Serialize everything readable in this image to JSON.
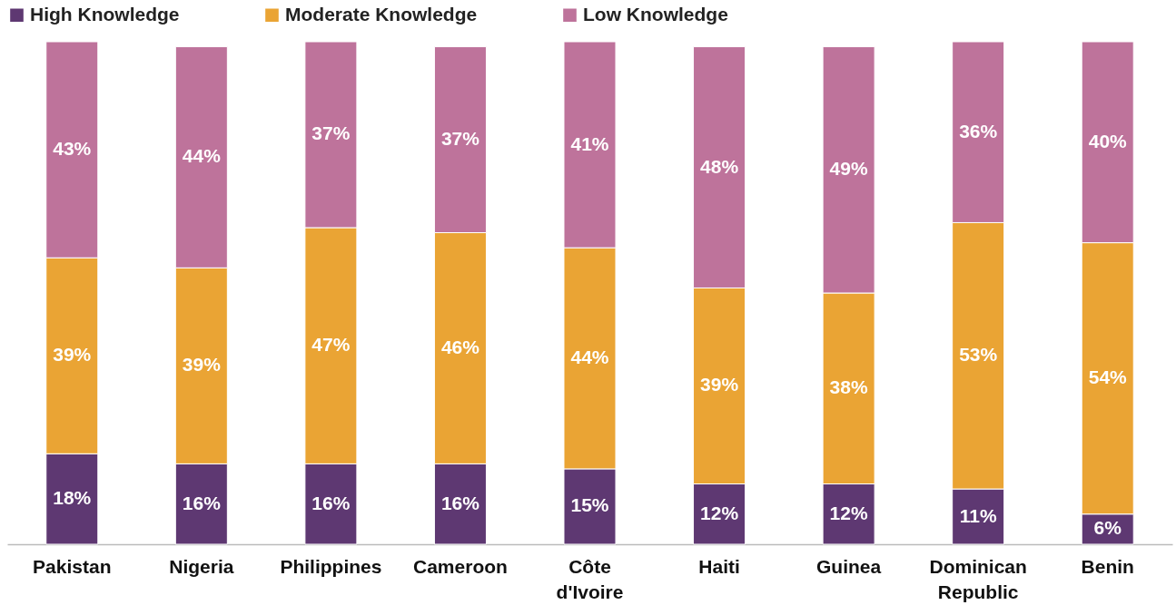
{
  "chart_data": {
    "type": "bar",
    "stacked": true,
    "legend": "top",
    "categories": [
      "Pakistan",
      "Nigeria",
      "Philippines",
      "Cameroon",
      "Côte d'Ivoire",
      "Haiti",
      "Guinea",
      "Dominican Republic",
      "Benin"
    ],
    "series": [
      {
        "name": "High Knowledge",
        "color": "#5e3872",
        "values": [
          18,
          16,
          16,
          16,
          15,
          12,
          12,
          11,
          6
        ],
        "value_labels": [
          "18%",
          "16%",
          "16%",
          "16%",
          "15%",
          "12%",
          "12%",
          "11%",
          "6%"
        ]
      },
      {
        "name": "Moderate Knowledge",
        "color": "#eaa434",
        "values": [
          39,
          39,
          47,
          46,
          44,
          39,
          38,
          53,
          54
        ],
        "value_labels": [
          "39%",
          "39%",
          "47%",
          "46%",
          "44%",
          "39%",
          "38%",
          "53%",
          "54%"
        ]
      },
      {
        "name": "Low Knowledge",
        "color": "#be739b",
        "values": [
          43,
          44,
          37,
          37,
          41,
          48,
          49,
          36,
          40
        ],
        "value_labels": [
          "43%",
          "44%",
          "37%",
          "37%",
          "41%",
          "48%",
          "49%",
          "36%",
          "40%"
        ]
      }
    ]
  }
}
